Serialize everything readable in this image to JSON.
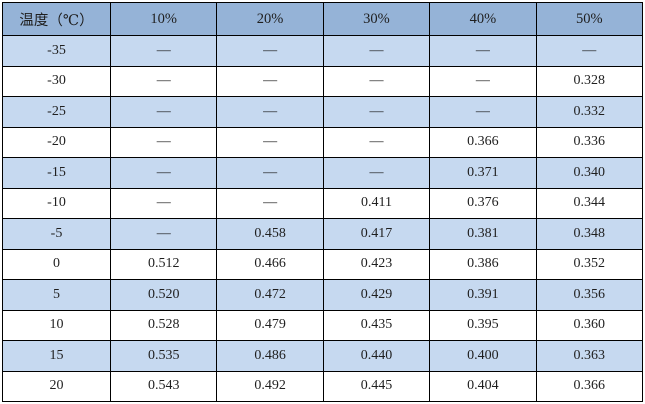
{
  "table": {
    "title": "温度（℃）",
    "header": [
      "温度（℃）",
      "10%",
      "20%",
      "30%",
      "40%",
      "50%"
    ],
    "empty_marker": "—",
    "rows": [
      [
        "-35",
        "—",
        "—",
        "—",
        "—",
        "—"
      ],
      [
        "-30",
        "—",
        "—",
        "—",
        "—",
        "0.328"
      ],
      [
        "-25",
        "—",
        "—",
        "—",
        "—",
        "0.332"
      ],
      [
        "-20",
        "—",
        "—",
        "—",
        "0.366",
        "0.336"
      ],
      [
        "-15",
        "—",
        "—",
        "—",
        "0.371",
        "0.340"
      ],
      [
        "-10",
        "—",
        "—",
        "0.411",
        "0.376",
        "0.344"
      ],
      [
        "-5",
        "—",
        "0.458",
        "0.417",
        "0.381",
        "0.348"
      ],
      [
        "0",
        "0.512",
        "0.466",
        "0.423",
        "0.386",
        "0.352"
      ],
      [
        "5",
        "0.520",
        "0.472",
        "0.429",
        "0.391",
        "0.356"
      ],
      [
        "10",
        "0.528",
        "0.479",
        "0.435",
        "0.395",
        "0.360"
      ],
      [
        "15",
        "0.535",
        "0.486",
        "0.440",
        "0.400",
        "0.363"
      ],
      [
        "20",
        "0.543",
        "0.492",
        "0.445",
        "0.404",
        "0.366"
      ]
    ],
    "colors": {
      "header_bg": "#95b3d7",
      "row_alt_bg": "#c6d9f0",
      "row_bg": "#ffffff",
      "border": "#000000",
      "text": "#1f1f1f"
    }
  }
}
